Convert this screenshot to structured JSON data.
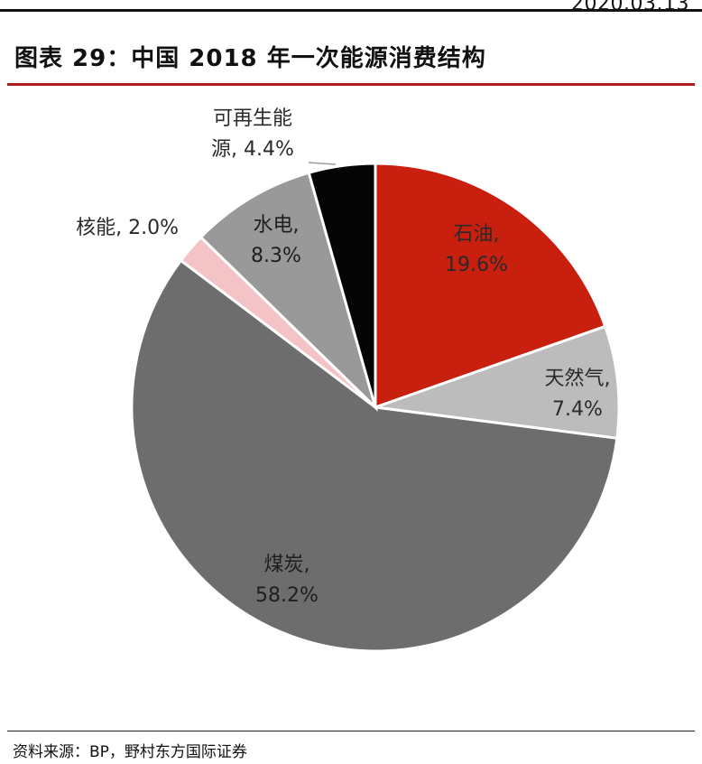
{
  "header": {
    "date": "2020.03.13"
  },
  "title": "图表 29：中国 2018 年一次能源消费结构",
  "source": "资料来源：BP，野村东方国际证券",
  "chart_data": {
    "type": "pie",
    "start_angle_deg": 0,
    "direction": "clockwise",
    "slices": [
      {
        "name": "石油",
        "value": 19.6,
        "label_line1": "石油,",
        "label_line2": "19.6%",
        "color": "#c91f0e",
        "text_color": "#2a2a2a"
      },
      {
        "name": "天然气",
        "value": 7.4,
        "label_line1": "天然气,",
        "label_line2": "7.4%",
        "color": "#bdbcbd",
        "text_color": "#2a2a2a"
      },
      {
        "name": "煤炭",
        "value": 58.2,
        "label_line1": "煤炭,",
        "label_line2": "58.2%",
        "color": "#6e6d6e",
        "text_color": "#1e1e1e"
      },
      {
        "name": "核能",
        "value": 2.0,
        "label_line1": "核能, 2.0%",
        "label_line2": "",
        "color": "#f3c3c6",
        "text_color": "#2a2a2a"
      },
      {
        "name": "水电",
        "value": 8.3,
        "label_line1": "水电,",
        "label_line2": "8.3%",
        "color": "#9a999a",
        "text_color": "#1e1e1e"
      },
      {
        "name": "可再生能源",
        "value": 4.4,
        "label_line1": "可再生能",
        "label_line2": "源, 4.4%",
        "color": "#050505",
        "text_color": "#2a2a2a"
      }
    ]
  }
}
